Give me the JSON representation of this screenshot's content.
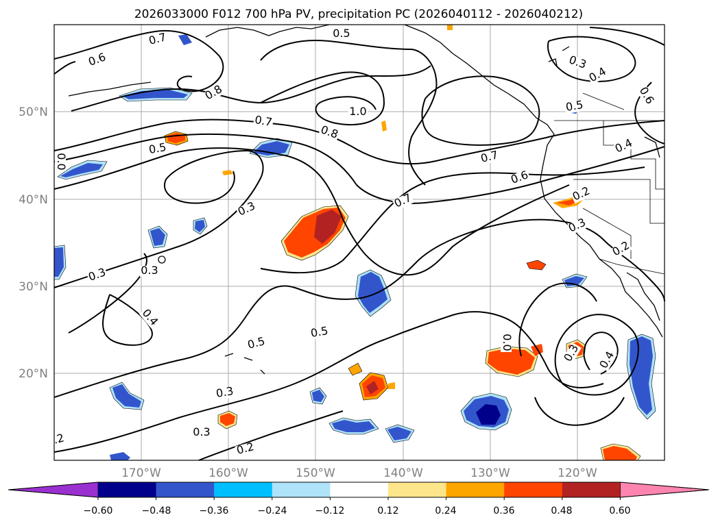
{
  "title": "2026033000 F012 700 hPa PV, precipitation PC (2026040112 - 2026040212)",
  "map": {
    "latitude_labels": [
      "50°N",
      "40°N",
      "30°N",
      "20°N"
    ],
    "longitude_labels": [
      "170°W",
      "160°W",
      "150°W",
      "140°W",
      "130°W",
      "120°W"
    ],
    "gridlines": true
  },
  "colorbar": {
    "extend": "both",
    "colors": [
      "#9b30d0",
      "#00008b",
      "#3355cc",
      "#00bfff",
      "#aee3fa",
      "#ffffff",
      "#fde68a",
      "#ffa500",
      "#ff4500",
      "#b22222",
      "#ff85b0"
    ],
    "tick_labels": [
      "−0.60",
      "−0.48",
      "−0.36",
      "−0.24",
      "−0.12",
      "0.12",
      "0.24",
      "0.36",
      "0.48",
      "0.60"
    ]
  },
  "contour_labels": [
    "0.7",
    "0.5",
    "0.6",
    "0.8",
    "1.0",
    "0.7",
    "0.8",
    "0.5",
    "0.3",
    "0.7",
    "0.7",
    "0.6",
    "0.3",
    "0.4",
    "0.5",
    "0.6",
    "0.4",
    "0.2",
    "0.3",
    "0.2",
    "0.3",
    "0.4",
    "0.5",
    "0.5",
    "0.3",
    "0.3",
    ".2",
    "0.2",
    "0.3",
    "0.4",
    "0.0",
    "0.0",
    "0.3"
  ]
}
